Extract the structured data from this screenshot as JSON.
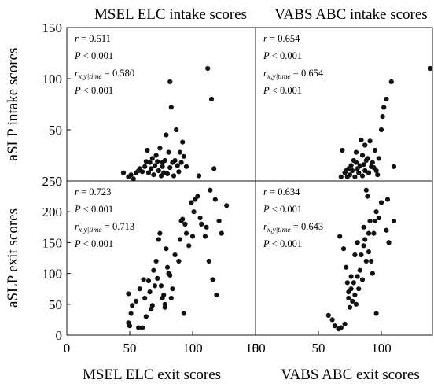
{
  "colors": {
    "axis": "#1a1a1a",
    "point": "#111111",
    "background": "#ffffff"
  },
  "chart_data": [
    {
      "type": "scatter",
      "title": "MSEL ELC intake scores",
      "xlabel": "",
      "ylabel": "aSLP intake scores",
      "xlim": [
        0,
        150
      ],
      "ylim": [
        0,
        150
      ],
      "xticks": [],
      "yticks": [
        "0",
        "50",
        "100",
        "150"
      ],
      "stats": [
        {
          "var": "r",
          "rel": " = ",
          "val": "0.511"
        },
        {
          "var": "P",
          "rel": " < ",
          "val": "0.001"
        },
        {
          "var": "r",
          "sub": "x,y|time",
          "rel": " = ",
          "val": "0.580"
        },
        {
          "var": "P",
          "rel": " < ",
          "val": "0.001"
        }
      ],
      "points": [
        [
          45,
          8
        ],
        [
          49,
          4
        ],
        [
          51,
          6
        ],
        [
          53,
          2
        ],
        [
          55,
          8
        ],
        [
          57,
          10
        ],
        [
          58,
          12
        ],
        [
          60,
          9
        ],
        [
          62,
          14
        ],
        [
          63,
          19
        ],
        [
          64,
          30
        ],
        [
          65,
          8
        ],
        [
          66,
          18
        ],
        [
          67,
          12
        ],
        [
          68,
          22
        ],
        [
          69,
          6
        ],
        [
          70,
          15
        ],
        [
          71,
          25
        ],
        [
          72,
          19
        ],
        [
          73,
          10
        ],
        [
          74,
          32
        ],
        [
          75,
          5
        ],
        [
          76,
          14
        ],
        [
          76,
          18
        ],
        [
          77,
          8
        ],
        [
          78,
          20
        ],
        [
          79,
          45
        ],
        [
          80,
          7
        ],
        [
          81,
          28
        ],
        [
          82,
          13
        ],
        [
          82,
          97
        ],
        [
          83,
          72
        ],
        [
          84,
          18
        ],
        [
          85,
          5
        ],
        [
          86,
          20
        ],
        [
          87,
          50
        ],
        [
          88,
          15
        ],
        [
          89,
          9
        ],
        [
          90,
          28
        ],
        [
          91,
          18
        ],
        [
          92,
          38
        ],
        [
          93,
          24
        ],
        [
          95,
          14
        ],
        [
          105,
          5
        ],
        [
          112,
          110
        ],
        [
          115,
          80
        ],
        [
          117,
          12
        ]
      ]
    },
    {
      "type": "scatter",
      "title": "VABS ABC intake scores",
      "xlabel": "",
      "ylabel": "",
      "xlim": [
        0,
        150
      ],
      "ylim": [
        0,
        150
      ],
      "xticks": [],
      "yticks": [],
      "stats": [
        {
          "var": "r",
          "rel": " = ",
          "val": "0.654"
        },
        {
          "var": "P",
          "rel": " < ",
          "val": "0.001"
        },
        {
          "var": "r",
          "sub": "x,y|time",
          "rel": " = ",
          "val": "0.654"
        },
        {
          "var": "P",
          "rel": " < ",
          "val": "0.001"
        }
      ],
      "points": [
        [
          68,
          4
        ],
        [
          69,
          30
        ],
        [
          71,
          8
        ],
        [
          72,
          10
        ],
        [
          73,
          4
        ],
        [
          74,
          12
        ],
        [
          75,
          6
        ],
        [
          76,
          15
        ],
        [
          77,
          10
        ],
        [
          78,
          20
        ],
        [
          79,
          4
        ],
        [
          80,
          18
        ],
        [
          80,
          28
        ],
        [
          81,
          12
        ],
        [
          82,
          8
        ],
        [
          83,
          15
        ],
        [
          84,
          40
        ],
        [
          85,
          25
        ],
        [
          85,
          5
        ],
        [
          86,
          16
        ],
        [
          87,
          10
        ],
        [
          87,
          35
        ],
        [
          88,
          20
        ],
        [
          89,
          22
        ],
        [
          90,
          8
        ],
        [
          91,
          39
        ],
        [
          92,
          14
        ],
        [
          93,
          18
        ],
        [
          94,
          13
        ],
        [
          95,
          30
        ],
        [
          96,
          10
        ],
        [
          97,
          6
        ],
        [
          98,
          22
        ],
        [
          100,
          50
        ],
        [
          101,
          63
        ],
        [
          102,
          72
        ],
        [
          104,
          80
        ],
        [
          108,
          97
        ],
        [
          110,
          14
        ],
        [
          139,
          110
        ]
      ]
    },
    {
      "type": "scatter",
      "title": "",
      "xlabel": "MSEL ELC exit scores",
      "ylabel": "aSLP exit scores",
      "xlim": [
        0,
        150
      ],
      "ylim": [
        0,
        250
      ],
      "xticks": [
        "0",
        "50",
        "100",
        "150"
      ],
      "yticks": [
        "0",
        "50",
        "100",
        "150",
        "200",
        "250"
      ],
      "stats": [
        {
          "var": "r",
          "rel": " = ",
          "val": "0.723"
        },
        {
          "var": "P",
          "rel": " < ",
          "val": "0.001"
        },
        {
          "var": "r",
          "sub": "x,y|time",
          "rel": " = ",
          "val": "0.713"
        },
        {
          "var": "P",
          "rel": " < ",
          "val": "0.001"
        }
      ],
      "points": [
        [
          49,
          67
        ],
        [
          49,
          20
        ],
        [
          50,
          15
        ],
        [
          51,
          35
        ],
        [
          52,
          48
        ],
        [
          55,
          55
        ],
        [
          57,
          12
        ],
        [
          58,
          75
        ],
        [
          60,
          12
        ],
        [
          61,
          90
        ],
        [
          62,
          60
        ],
        [
          63,
          30
        ],
        [
          65,
          88
        ],
        [
          66,
          70
        ],
        [
          67,
          42
        ],
        [
          68,
          48
        ],
        [
          69,
          105
        ],
        [
          70,
          80
        ],
        [
          71,
          120
        ],
        [
          72,
          92
        ],
        [
          73,
          155
        ],
        [
          74,
          165
        ],
        [
          75,
          80
        ],
        [
          76,
          60
        ],
        [
          77,
          65
        ],
        [
          78,
          50
        ],
        [
          78,
          45
        ],
        [
          79,
          140
        ],
        [
          80,
          110
        ],
        [
          81,
          100
        ],
        [
          82,
          97
        ],
        [
          83,
          60
        ],
        [
          84,
          75
        ],
        [
          86,
          130
        ],
        [
          89,
          120
        ],
        [
          90,
          155
        ],
        [
          91,
          185
        ],
        [
          92,
          188
        ],
        [
          93,
          35
        ],
        [
          94,
          180
        ],
        [
          95,
          165
        ],
        [
          97,
          145
        ],
        [
          99,
          215
        ],
        [
          100,
          160
        ],
        [
          101,
          200
        ],
        [
          102,
          220
        ],
        [
          104,
          225
        ],
        [
          106,
          190
        ],
        [
          107,
          180
        ],
        [
          110,
          160
        ],
        [
          111,
          175
        ],
        [
          113,
          120
        ],
        [
          114,
          235
        ],
        [
          116,
          90
        ],
        [
          118,
          220
        ],
        [
          119,
          65
        ],
        [
          121,
          185
        ],
        [
          123,
          165
        ],
        [
          127,
          210
        ]
      ]
    },
    {
      "type": "scatter",
      "title": "",
      "xlabel": "VABS ABC exit scores",
      "ylabel": "",
      "xlim": [
        0,
        150
      ],
      "ylim": [
        0,
        250
      ],
      "xticks": [
        "0",
        "50",
        "100",
        "150"
      ],
      "yticks": [],
      "stats": [
        {
          "var": "r",
          "rel": " = ",
          "val": "0.634"
        },
        {
          "var": "P",
          "rel": " < ",
          "val": "0.001"
        },
        {
          "var": "r",
          "sub": "x,y|time",
          "rel": " = ",
          "val": "0.643"
        },
        {
          "var": "P",
          "rel": " < ",
          "val": "0.001"
        }
      ],
      "points": [
        [
          58,
          32
        ],
        [
          61,
          25
        ],
        [
          63,
          15
        ],
        [
          66,
          10
        ],
        [
          67,
          160
        ],
        [
          68,
          12
        ],
        [
          70,
          140
        ],
        [
          71,
          18
        ],
        [
          72,
          110
        ],
        [
          73,
          85
        ],
        [
          74,
          60
        ],
        [
          74,
          70
        ],
        [
          75,
          45
        ],
        [
          76,
          95
        ],
        [
          76,
          75
        ],
        [
          77,
          55
        ],
        [
          78,
          85
        ],
        [
          79,
          130
        ],
        [
          79,
          65
        ],
        [
          80,
          50
        ],
        [
          81,
          95
        ],
        [
          81,
          150
        ],
        [
          82,
          75
        ],
        [
          83,
          105
        ],
        [
          84,
          130
        ],
        [
          85,
          90
        ],
        [
          86,
          175
        ],
        [
          86,
          145
        ],
        [
          87,
          155
        ],
        [
          88,
          235
        ],
        [
          88,
          120
        ],
        [
          89,
          225
        ],
        [
          90,
          165
        ],
        [
          90,
          135
        ],
        [
          91,
          185
        ],
        [
          92,
          120
        ],
        [
          93,
          100
        ],
        [
          94,
          165
        ],
        [
          95,
          185
        ],
        [
          96,
          200
        ],
        [
          96,
          35
        ],
        [
          98,
          190
        ],
        [
          100,
          215
        ],
        [
          104,
          170
        ],
        [
          105,
          220
        ],
        [
          106,
          150
        ],
        [
          110,
          185
        ]
      ]
    }
  ]
}
